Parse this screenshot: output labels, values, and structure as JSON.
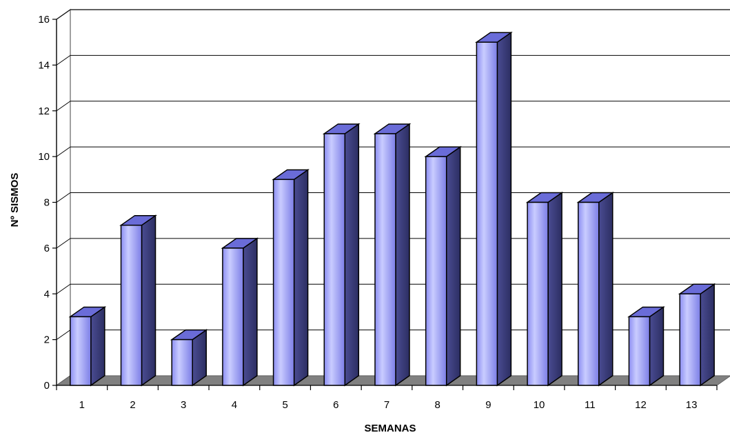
{
  "chart_data": {
    "type": "bar",
    "title": "",
    "xlabel": "SEMANAS",
    "ylabel": "Nº SISMOS",
    "categories": [
      "1",
      "2",
      "3",
      "4",
      "5",
      "6",
      "7",
      "8",
      "9",
      "10",
      "11",
      "12",
      "13"
    ],
    "values": [
      3,
      7,
      2,
      6,
      9,
      11,
      11,
      10,
      15,
      8,
      8,
      3,
      4
    ],
    "ylim": [
      0,
      16
    ],
    "yticks": [
      "0",
      "2",
      "4",
      "6",
      "8",
      "10",
      "12",
      "14",
      "16"
    ],
    "grid": true,
    "legend": "none",
    "colors": {
      "bar_front_light": "#c8ccff",
      "bar_front_mid": "#8a8cf0",
      "bar_side": "#3a3c78",
      "bar_top": "#6a6cd8",
      "floor": "#808080",
      "grid": "#000000"
    }
  }
}
